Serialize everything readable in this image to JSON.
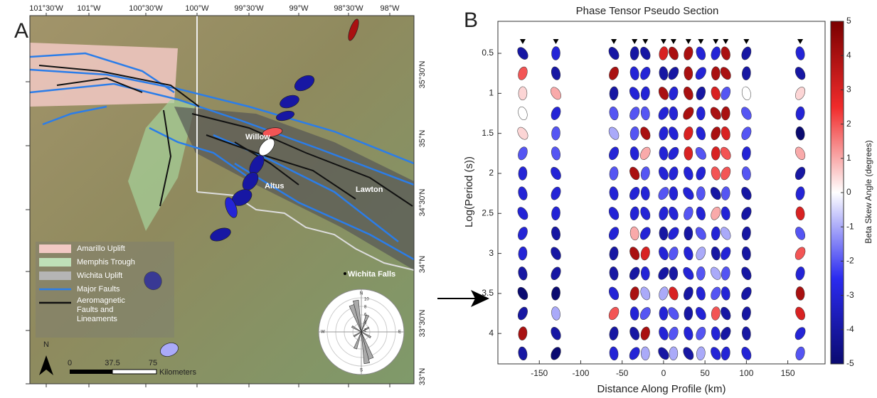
{
  "panel_a": {
    "label": "A",
    "lon_labels": [
      "101°30'W",
      "101°W",
      "100°30'W",
      "100°W",
      "99°30'W",
      "99°W",
      "98°30'W",
      "98°W"
    ],
    "lat_labels": [
      "35°30'N",
      "35°N",
      "34°30'N",
      "34°N",
      "33°30'N",
      "33°N"
    ],
    "places": [
      "Willow",
      "Altus",
      "Lawton",
      "Wichita Falls"
    ],
    "legend": [
      {
        "name": "Amarillo Uplift",
        "color": "#f2c9c4"
      },
      {
        "name": "Memphis Trough",
        "color": "#bfe0b8"
      },
      {
        "name": "Wichita Uplift",
        "color": "#b5b5b5"
      },
      {
        "name": "Major Faults",
        "color": "#2b7de9"
      },
      {
        "name": [
          "Aeromagnetic",
          "Faults and",
          "Lineaments"
        ],
        "color": "#111111"
      }
    ],
    "north": "N",
    "scale_labels": [
      "0",
      "37.5",
      "75",
      "Kilometers"
    ],
    "rose": {
      "directions": [
        "N",
        "E",
        "S",
        "W"
      ],
      "rings": [
        "10",
        "8",
        "6",
        "4",
        "2"
      ]
    },
    "skew": [
      4,
      -4,
      -4,
      -4,
      2,
      0,
      -4,
      -4,
      -4,
      -3,
      -4,
      -4,
      -1
    ]
  },
  "chart_data": {
    "type": "phase-tensor",
    "label": "B",
    "title": "Phase Tensor Pseudo Section",
    "x_label": "Distance Along Profile (km)",
    "y_label": "Log(Period (s))",
    "xlim": [
      -200,
      195
    ],
    "xticks": [
      -150,
      -100,
      -50,
      0,
      50,
      100,
      150
    ],
    "ylim": [
      0.1,
      4.38
    ],
    "yticks": [
      0.5,
      1,
      1.5,
      2,
      2.5,
      3,
      3.5,
      4
    ],
    "periods": [
      0.5,
      0.75,
      1,
      1.25,
      1.5,
      1.75,
      2,
      2.25,
      2.5,
      2.75,
      3,
      3.25,
      3.5,
      3.75,
      4,
      4.25
    ],
    "stations": [
      {
        "x": -170,
        "skew": [
          -4,
          2,
          0.5,
          0,
          0.5,
          -2,
          -3,
          -3,
          -3,
          -3,
          -3,
          -4,
          -5,
          -4,
          4,
          -4
        ]
      },
      {
        "x": -130,
        "skew": [
          -3,
          -4,
          1,
          -3,
          -2,
          -2,
          -3,
          -3,
          -3,
          -4,
          -4,
          -4,
          -5,
          -1,
          -4,
          -5
        ]
      },
      {
        "x": -60,
        "skew": [
          -4,
          4,
          -4,
          -2,
          -1,
          -3,
          -2,
          -3,
          -3,
          -3,
          -4,
          -4,
          -3,
          2,
          -4,
          -3
        ]
      },
      {
        "x": -35,
        "skew": [
          -4,
          -3,
          -3,
          -2,
          -2,
          -3,
          4,
          -3,
          -3,
          1,
          4,
          -4,
          4,
          -3,
          -4,
          -3
        ]
      },
      {
        "x": -22,
        "skew": [
          -4,
          -3,
          -3,
          -2,
          4,
          1,
          -2,
          -3,
          -3,
          -3,
          3,
          -3,
          -1,
          -2,
          4,
          -1
        ]
      },
      {
        "x": 0,
        "skew": [
          3,
          -4,
          4,
          -3,
          -3,
          -3,
          -3,
          -2,
          -3,
          -4,
          -3,
          -4,
          -1,
          -3,
          -3,
          -4
        ]
      },
      {
        "x": 12,
        "skew": [
          4,
          -4,
          -3,
          -3,
          -3,
          -3,
          -3,
          -3,
          -3,
          -3,
          -2,
          -4,
          3,
          -2,
          -2,
          -1
        ]
      },
      {
        "x": 30,
        "skew": [
          4,
          4,
          4,
          4,
          3,
          3,
          -3,
          -3,
          -2,
          -4,
          -3,
          -3,
          -4,
          -4,
          -3,
          -4
        ]
      },
      {
        "x": 45,
        "skew": [
          -3,
          -3,
          -4,
          -3,
          -3,
          -2,
          -3,
          -2,
          -3,
          -2,
          -1,
          -2,
          -3,
          -3,
          -2,
          -1
        ]
      },
      {
        "x": 63,
        "skew": [
          -3,
          4,
          3,
          4,
          4,
          3,
          2,
          -4,
          1,
          -3,
          -4,
          -1,
          -2,
          2,
          -3,
          -3
        ]
      },
      {
        "x": 75,
        "skew": [
          4,
          4,
          -2,
          4,
          3,
          2,
          2,
          -2,
          -3,
          -1,
          -3,
          -2,
          -3,
          -4,
          -4,
          -3
        ]
      },
      {
        "x": 100,
        "skew": [
          -4,
          -4,
          0,
          -2,
          -2,
          -3,
          -2,
          -4,
          -4,
          -4,
          -4,
          -4,
          -4,
          -4,
          -4,
          -3
        ]
      },
      {
        "x": 165,
        "skew": [
          -3,
          -4,
          0.5,
          -3,
          -5,
          1,
          -4,
          -3,
          3,
          -2,
          2,
          -3,
          4,
          3,
          -3,
          -2
        ]
      }
    ],
    "colorbar": {
      "label": "Beta Skew Angle (degrees)",
      "lim": [
        -5,
        5
      ],
      "ticks": [
        -5,
        -4,
        -3,
        -2,
        -1,
        0,
        1,
        2,
        3,
        4,
        5
      ],
      "colormap": [
        "#0a0a70",
        "#2b2bf0",
        "#ffffff",
        "#f02b2b",
        "#7a0000"
      ]
    }
  }
}
